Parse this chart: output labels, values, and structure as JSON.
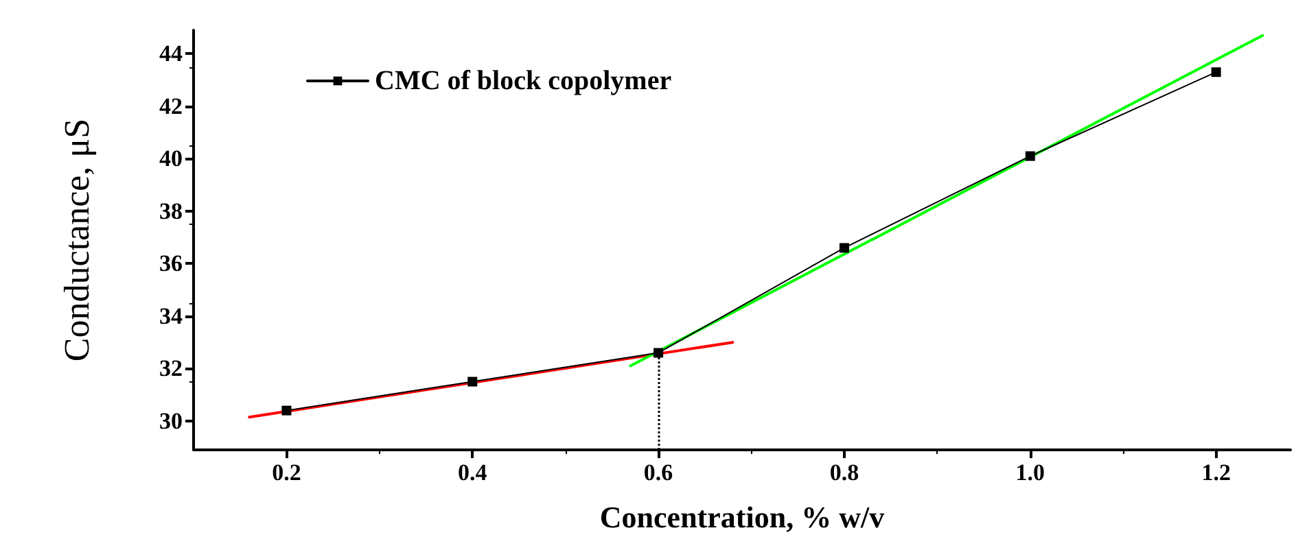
{
  "chart_data": {
    "type": "line",
    "xlabel": "Concentration, % w/v",
    "ylabel": "Conductance, μS",
    "series": [
      {
        "name": "CMC of block copolymer",
        "color": "#000000",
        "x": [
          0.2,
          0.4,
          0.6,
          0.8,
          1.0,
          1.2
        ],
        "values": [
          30.4,
          31.5,
          32.6,
          36.6,
          40.1,
          43.3
        ],
        "marker": "square",
        "line_style": "solid"
      },
      {
        "type": "line",
        "color": "#ff0000",
        "x": [
          0.16,
          0.68
        ],
        "values": [
          30.15,
          33.0
        ],
        "marker": "none",
        "line_style": "solid"
      },
      {
        "type": "line",
        "color": "#00ff00",
        "x": [
          0.57,
          1.25
        ],
        "values": [
          32.1,
          44.7
        ],
        "marker": "none",
        "line_style": "solid"
      }
    ],
    "xlim": [
      0.1,
      1.28
    ],
    "xticks": [
      {
        "value": 0.2,
        "label": "0.2"
      },
      {
        "value": 0.4,
        "label": "0.4"
      },
      {
        "value": 0.6,
        "label": "0.6"
      },
      {
        "value": 0.8,
        "label": "0.8"
      },
      {
        "value": 1.0,
        "label": "1.0"
      },
      {
        "value": 1.2,
        "label": "1.2"
      }
    ],
    "ylim": [
      28.9,
      44.9
    ],
    "yticks": [
      30,
      32,
      34,
      36,
      38,
      40,
      42,
      44
    ],
    "ref_lines": [
      {
        "axis": "x",
        "value": 0.6,
        "line_style": "dotted",
        "color": "#000000"
      }
    ],
    "grid": false,
    "legend": "top left"
  }
}
